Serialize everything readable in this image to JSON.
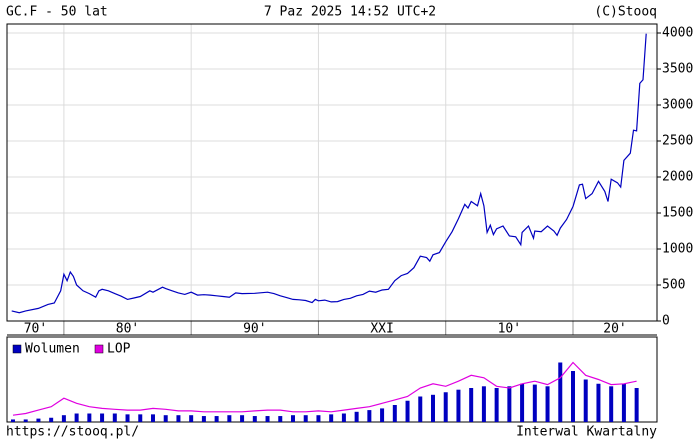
{
  "header": {
    "title": "GC.F - 50 lat",
    "date": "7 Paz 2025 14:52 UTC+2",
    "copyright": "(C)Stooq"
  },
  "footer": {
    "url": "https://stooq.pl/",
    "interval": "Interwal Kwartalny"
  },
  "chart_data": [
    {
      "type": "line",
      "color": "#0000c0",
      "grid": true,
      "x": [
        1975.9,
        1976.5,
        1977,
        1978,
        1978.75,
        1979.25,
        1979.75,
        1980,
        1980.25,
        1980.5,
        1980.75,
        1981,
        1981.5,
        1982,
        1982.5,
        1982.75,
        1983,
        1983.5,
        1984,
        1984.5,
        1985,
        1985.5,
        1986,
        1986.75,
        1987,
        1987.75,
        1988,
        1988.5,
        1989,
        1989.5,
        1990,
        1990.5,
        1991,
        1991.5,
        1992,
        1992.5,
        1993,
        1993.5,
        1994,
        1995,
        1996,
        1996.5,
        1997,
        1997.5,
        1998,
        1998.5,
        1999,
        1999.5,
        1999.75,
        2000,
        2000.5,
        2001,
        2001.5,
        2002,
        2002.5,
        2003,
        2003.5,
        2004,
        2004.5,
        2005,
        2005.5,
        2006,
        2006.5,
        2007,
        2007.5,
        2008,
        2008.5,
        2008.75,
        2009,
        2009.5,
        2010,
        2010.5,
        2011,
        2011.5,
        2011.75,
        2012,
        2012.5,
        2012.75,
        2013,
        2013.25,
        2013.5,
        2013.75,
        2014,
        2014.5,
        2015,
        2015.5,
        2015.9,
        2016,
        2016.5,
        2016.9,
        2017,
        2017.5,
        2018,
        2018.5,
        2018.75,
        2019,
        2019.5,
        2020,
        2020.5,
        2020.75,
        2021,
        2021.5,
        2022,
        2022.5,
        2022.75,
        2023,
        2023.5,
        2023.75,
        2024,
        2024.5,
        2024.75,
        2025,
        2025.25,
        2025.5,
        2025.75
      ],
      "values": [
        140,
        115,
        140,
        175,
        230,
        250,
        420,
        650,
        560,
        680,
        620,
        500,
        420,
        380,
        330,
        420,
        440,
        420,
        380,
        345,
        300,
        320,
        340,
        420,
        400,
        470,
        450,
        420,
        390,
        370,
        400,
        360,
        365,
        360,
        350,
        340,
        330,
        390,
        380,
        385,
        400,
        380,
        350,
        325,
        300,
        295,
        285,
        255,
        300,
        280,
        290,
        265,
        270,
        300,
        315,
        350,
        370,
        415,
        400,
        430,
        440,
        560,
        630,
        660,
        740,
        900,
        880,
        830,
        920,
        950,
        1100,
        1240,
        1420,
        1620,
        1570,
        1660,
        1600,
        1770,
        1600,
        1230,
        1330,
        1200,
        1280,
        1320,
        1180,
        1170,
        1060,
        1230,
        1320,
        1150,
        1250,
        1240,
        1320,
        1250,
        1190,
        1290,
        1410,
        1590,
        1890,
        1900,
        1700,
        1770,
        1940,
        1800,
        1660,
        1970,
        1920,
        1860,
        2230,
        2330,
        2650,
        2640,
        3300,
        3350,
        3990
      ],
      "xlim": [
        1975.53,
        2026.6
      ],
      "xticks": [
        {
          "value": 1970,
          "label": "70'"
        },
        {
          "value": 1980,
          "label": "80'"
        },
        {
          "value": 1990,
          "label": "90'"
        },
        {
          "value": 2000,
          "label": "XXI"
        },
        {
          "value": 2010,
          "label": "10'"
        },
        {
          "value": 2020,
          "label": "20'"
        }
      ],
      "ylim": [
        0,
        4125
      ],
      "yticks": [
        0,
        500,
        1000,
        1500,
        2000,
        2500,
        3000,
        3500,
        4000
      ]
    },
    {
      "type": "combo",
      "legend": "top-left",
      "x": [
        1976,
        1977,
        1978,
        1979,
        1980,
        1981,
        1982,
        1983,
        1984,
        1985,
        1986,
        1987,
        1988,
        1989,
        1990,
        1991,
        1992,
        1993,
        1994,
        1995,
        1996,
        1997,
        1998,
        1999,
        2000,
        2001,
        2002,
        2003,
        2004,
        2005,
        2006,
        2007,
        2008,
        2009,
        2010,
        2011,
        2012,
        2013,
        2014,
        2015,
        2016,
        2017,
        2018,
        2019,
        2020,
        2021,
        2022,
        2023,
        2024,
        2025
      ],
      "xlim": [
        1975.53,
        2026.6
      ],
      "ylim": [
        0,
        100
      ],
      "series": [
        {
          "name": "Wolumen",
          "color": "#0000c0",
          "kind": "bar",
          "values": [
            3,
            3,
            4,
            5,
            8,
            10,
            10,
            10,
            10,
            9,
            9,
            9,
            8,
            8,
            8,
            7,
            7,
            8,
            8,
            7,
            7,
            7,
            8,
            8,
            8,
            9,
            10,
            12,
            14,
            16,
            20,
            25,
            30,
            32,
            35,
            38,
            40,
            42,
            40,
            42,
            45,
            44,
            42,
            70,
            60,
            50,
            45,
            42,
            45,
            40
          ]
        },
        {
          "name": "LOP",
          "color": "#e000e0",
          "kind": "line",
          "values": [
            8,
            10,
            14,
            18,
            28,
            22,
            18,
            16,
            15,
            14,
            14,
            16,
            15,
            13,
            13,
            12,
            12,
            12,
            12,
            13,
            14,
            14,
            12,
            12,
            13,
            12,
            14,
            16,
            18,
            22,
            26,
            30,
            40,
            45,
            42,
            48,
            55,
            52,
            42,
            40,
            45,
            48,
            44,
            52,
            70,
            55,
            50,
            44,
            45,
            48
          ]
        }
      ]
    }
  ]
}
